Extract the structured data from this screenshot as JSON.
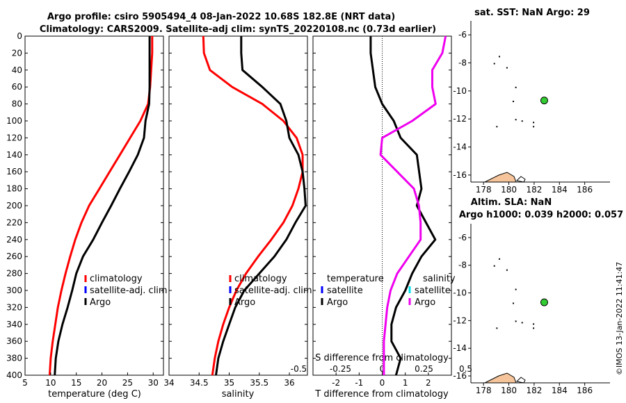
{
  "title": {
    "line1": "Argo profile: csiro 5905494_4 08-Jan-2022 10.68S 182.8E (NRT data)",
    "line2": "Climatology: CARS2009. Satellite-adj clim: synTS_20220108.nc (0.73d earlier)"
  },
  "colors": {
    "climatology": "#ff0000",
    "satellite": "#0000ff",
    "argo": "#000000",
    "sal_satellite": "#00e5ee",
    "sal_argo": "#ee00ee",
    "marker": "#33cc33",
    "land": "#f5c49a"
  },
  "depth_axis": {
    "ylim": [
      0,
      400
    ],
    "ticks": [
      "0",
      "20",
      "40",
      "60",
      "80",
      "100",
      "120",
      "140",
      "160",
      "180",
      "200",
      "220",
      "240",
      "260",
      "280",
      "300",
      "320",
      "340",
      "360",
      "380",
      "400"
    ]
  },
  "chart_data": [
    {
      "type": "line",
      "xlabel": "temperature (deg C)",
      "xlim": [
        5,
        32
      ],
      "xticks": [
        "5",
        "10",
        "15",
        "20",
        "25",
        "30"
      ],
      "legend": [
        "climatology",
        "satellite-adj. clim",
        "Argo"
      ],
      "series": [
        {
          "name": "climatology",
          "x": [
            29.8,
            29.8,
            29.6,
            29.4,
            29.0,
            27.5,
            25.5,
            23.5,
            21.5,
            19.5,
            17.5,
            16.0,
            14.8,
            13.8,
            12.9,
            12.1,
            11.4,
            10.9,
            10.4,
            10.0,
            9.8
          ],
          "depth": [
            0,
            20,
            40,
            60,
            80,
            100,
            120,
            140,
            160,
            180,
            200,
            220,
            240,
            260,
            280,
            300,
            320,
            340,
            360,
            380,
            400
          ]
        },
        {
          "name": "Argo",
          "x": [
            29.3,
            29.3,
            29.3,
            29.3,
            29.2,
            28.5,
            28.2,
            27.0,
            25.3,
            23.5,
            21.8,
            20.0,
            18.3,
            16.3,
            15.0,
            14.2,
            13.3,
            12.3,
            11.5,
            11.0,
            10.8
          ],
          "depth": [
            0,
            20,
            40,
            60,
            80,
            100,
            120,
            140,
            160,
            180,
            200,
            220,
            240,
            260,
            280,
            300,
            320,
            340,
            360,
            380,
            400
          ]
        }
      ]
    },
    {
      "type": "line",
      "xlabel": "salinity",
      "xlim": [
        34,
        36.3
      ],
      "xticks": [
        "34",
        "34.5",
        "35",
        "35.5",
        "36"
      ],
      "legend": [
        "climatology",
        "satellite-adj. clim",
        "Argo"
      ],
      "series": [
        {
          "name": "climatology",
          "x": [
            34.57,
            34.58,
            34.68,
            35.05,
            35.55,
            35.9,
            36.12,
            36.22,
            36.22,
            36.15,
            36.05,
            35.9,
            35.7,
            35.48,
            35.28,
            35.12,
            35.0,
            34.9,
            34.82,
            34.76,
            34.72
          ],
          "depth": [
            0,
            20,
            40,
            60,
            80,
            100,
            120,
            140,
            160,
            180,
            200,
            220,
            240,
            260,
            280,
            300,
            320,
            340,
            360,
            380,
            400
          ]
        },
        {
          "name": "Argo",
          "x": [
            35.2,
            35.2,
            35.22,
            35.55,
            35.85,
            35.95,
            36.0,
            36.15,
            36.22,
            36.25,
            36.27,
            36.1,
            35.95,
            35.75,
            35.5,
            35.25,
            35.1,
            35.0,
            34.9,
            34.82,
            34.78
          ],
          "depth": [
            0,
            20,
            40,
            60,
            80,
            100,
            120,
            140,
            160,
            180,
            200,
            220,
            240,
            260,
            280,
            300,
            320,
            340,
            360,
            380,
            400
          ]
        }
      ]
    },
    {
      "type": "line",
      "xlabel": "T difference from climatology",
      "xlabel_top": "S difference from climatology",
      "xlim": [
        -3,
        3
      ],
      "xticks": [
        "-2",
        "-1",
        "0",
        "1",
        "2"
      ],
      "xticks_top": [
        "-0.5",
        "-0.25",
        "0",
        "0.25",
        "0.5"
      ],
      "legend_temp_title": "temperature",
      "legend_sal_title": "salinity",
      "legend_temp": [
        "satellite",
        "Argo"
      ],
      "legend_sal": [
        "satellite",
        "Argo"
      ],
      "series": [
        {
          "name": "T diff Argo",
          "x": [
            -0.5,
            -0.5,
            -0.4,
            -0.3,
            0.0,
            0.5,
            0.8,
            1.5,
            1.6,
            1.7,
            1.5,
            1.9,
            2.3,
            1.7,
            1.3,
            1.0,
            0.6,
            0.4,
            0.4,
            0.8,
            0.6
          ],
          "depth": [
            0,
            20,
            40,
            60,
            80,
            100,
            120,
            140,
            160,
            180,
            200,
            220,
            240,
            260,
            280,
            300,
            320,
            340,
            360,
            380,
            400
          ]
        },
        {
          "name": "S diff Argo",
          "x": [
            0.38,
            0.36,
            0.3,
            0.3,
            0.32,
            0.18,
            0.0,
            -0.01,
            0.09,
            0.19,
            0.22,
            0.23,
            0.23,
            0.16,
            0.09,
            0.05,
            0.03,
            0.02,
            0.01,
            0.01,
            0.01
          ],
          "depth": [
            0,
            20,
            40,
            60,
            80,
            100,
            120,
            140,
            160,
            180,
            200,
            220,
            240,
            260,
            280,
            300,
            320,
            340,
            360,
            380,
            400
          ]
        }
      ]
    },
    {
      "type": "scatter",
      "title": "sat. SST: NaN Argo: 29",
      "xlim": [
        177,
        188
      ],
      "ylim": [
        -16.5,
        -5
      ],
      "xticks": [
        "178",
        "180",
        "182",
        "184",
        "186"
      ],
      "yticks": [
        "-6",
        "-8",
        "-10",
        "-12",
        "-14",
        "-16"
      ],
      "points": [
        {
          "lon": 182.8,
          "lat": -10.68,
          "label": "Argo float"
        }
      ]
    },
    {
      "type": "scatter",
      "title": "Altim. SLA: NaN",
      "subtitle": "Argo h1000: 0.039 h2000: 0.057",
      "xlim": [
        177,
        188
      ],
      "ylim": [
        -16.5,
        -5
      ],
      "xticks": [
        "178",
        "180",
        "182",
        "184",
        "186"
      ],
      "yticks": [
        "-6",
        "-8",
        "-10",
        "-12",
        "-14",
        "-16"
      ],
      "points": [
        {
          "lon": 182.8,
          "lat": -10.68,
          "label": "Argo float"
        }
      ]
    }
  ],
  "stamp": "©IMOS 13-Jan-2022 11:41:47"
}
